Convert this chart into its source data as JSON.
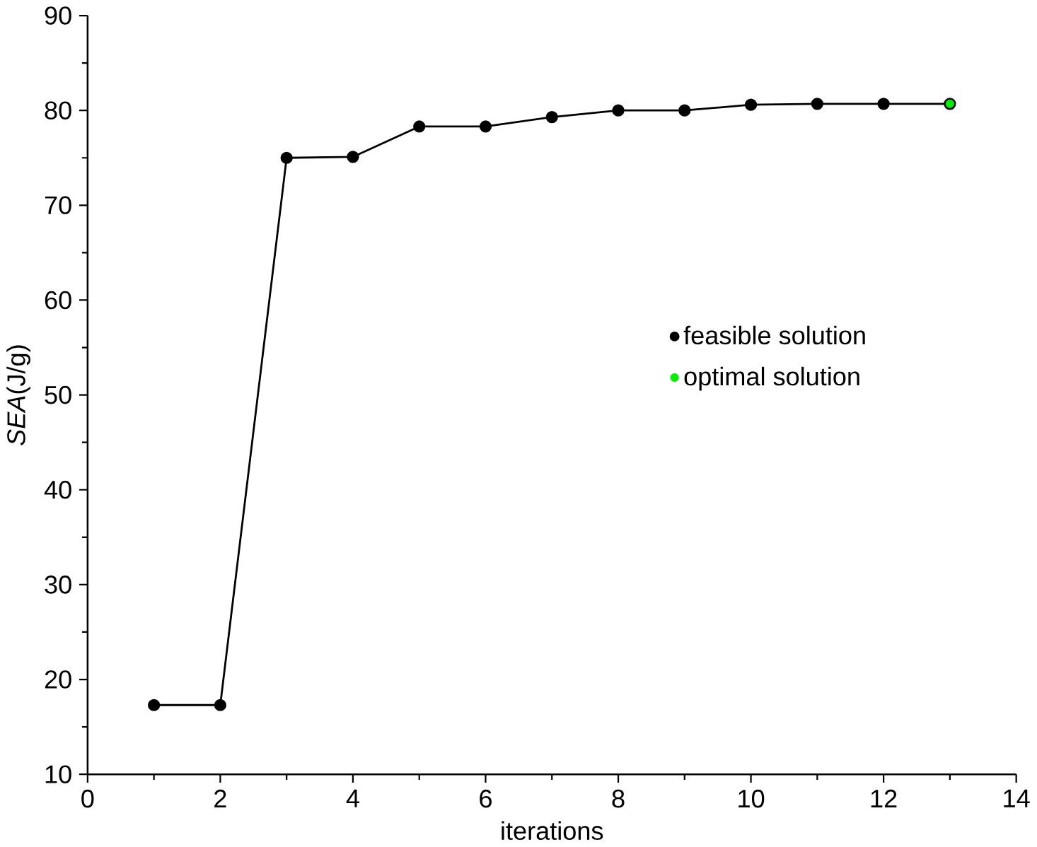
{
  "chart_data": {
    "type": "line",
    "xlabel": "iterations",
    "ylabel": "*SEA*(J/g)",
    "xlim": [
      0,
      14
    ],
    "xticks": [
      0,
      2,
      4,
      6,
      8,
      10,
      12,
      14
    ],
    "ylim": [
      10,
      90
    ],
    "yticks": [
      10,
      20,
      30,
      40,
      50,
      60,
      70,
      80,
      90
    ],
    "grid": false,
    "legend": "right",
    "marker": "circle",
    "series": [
      {
        "name": "feasible solution",
        "color": "#000000",
        "x": [
          1,
          2,
          3,
          4,
          5,
          6,
          7,
          8,
          9,
          10,
          11,
          12,
          13
        ],
        "values": [
          17.3,
          17.3,
          75.0,
          75.1,
          78.3,
          78.3,
          79.3,
          80.0,
          80.0,
          80.6,
          80.7,
          80.7,
          80.7
        ]
      },
      {
        "name": "optimal solution",
        "type": "scatter",
        "color": "#00ee00",
        "x": [
          13
        ],
        "values": [
          80.7
        ]
      }
    ]
  }
}
